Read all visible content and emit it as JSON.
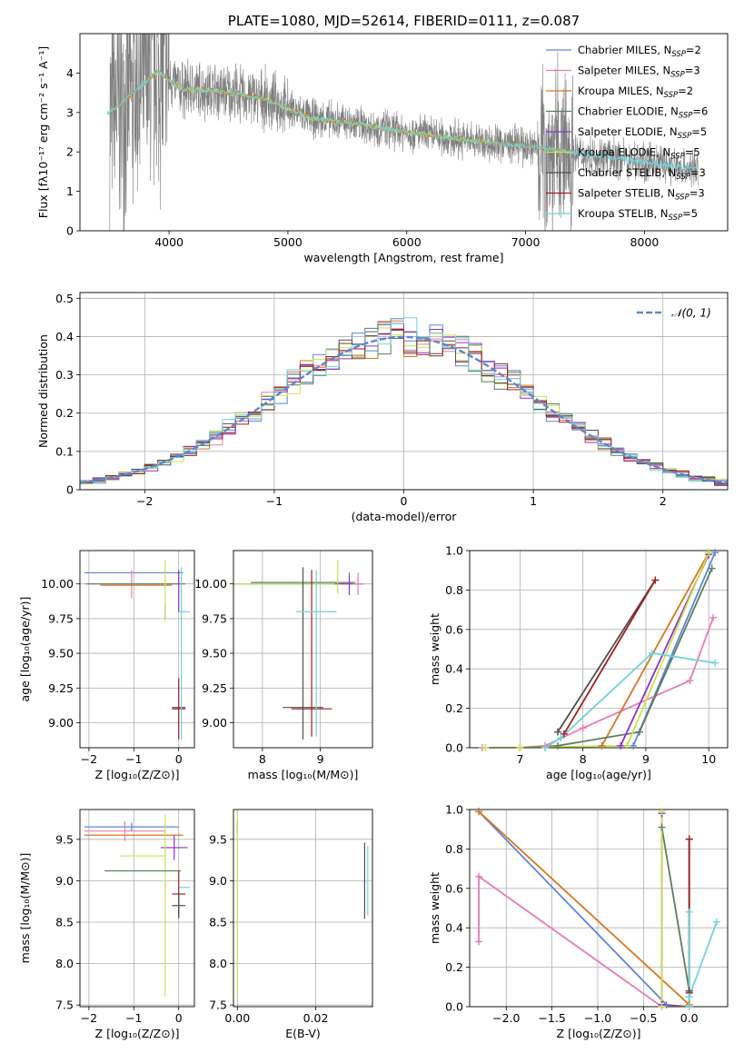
{
  "colors": {
    "Chabrier MILES": "#5b86d4",
    "Salpeter MILES": "#e87bb8",
    "Kroupa MILES": "#d9761f",
    "Chabrier ELODIE": "#5a7f5e",
    "Salpeter ELODIE": "#8f2fd3",
    "Kroupa ELODIE": "#c8e34e",
    "Chabrier STELIB": "#505050",
    "Salpeter STELIB": "#a11f1f",
    "Kroupa STELIB": "#6fd3dc",
    "data": "#7f7f7f",
    "grid": "#b0b0b0"
  },
  "chart_data": [
    {
      "id": "spectrum",
      "type": "line",
      "title": "PLATE=1080, MJD=52614, FIBERID=0111, z=0.087",
      "xlabel": "wavelength [Angstrom, rest frame]",
      "ylabel": "Flux [fλ10⁻¹⁷ erg cm⁻² s⁻¹ A⁻¹]",
      "xlim": [
        3250,
        8700
      ],
      "ylim": [
        0,
        5
      ],
      "xticks": [
        4000,
        5000,
        6000,
        7000,
        8000
      ],
      "yticks": [
        0,
        1,
        2,
        3,
        4
      ],
      "grid": false,
      "legend_position": "top-right",
      "legend": [
        {
          "series": "Chabrier MILES",
          "label": "Chabrier MILES, N",
          "sub": "SSP",
          "suffix": "=2"
        },
        {
          "series": "Salpeter MILES",
          "label": "Salpeter MILES, N",
          "sub": "SSP",
          "suffix": "=3"
        },
        {
          "series": "Kroupa MILES",
          "label": "Kroupa MILES, N",
          "sub": "SSP",
          "suffix": "=2"
        },
        {
          "series": "Chabrier ELODIE",
          "label": "Chabrier ELODIE, N",
          "sub": "SSP",
          "suffix": "=6"
        },
        {
          "series": "Salpeter ELODIE",
          "label": "Salpeter ELODIE, N",
          "sub": "SSP",
          "suffix": "=5"
        },
        {
          "series": "Kroupa ELODIE",
          "label": "Kroupa ELODIE, N",
          "sub": "SSP",
          "suffix": "=5"
        },
        {
          "series": "Chabrier STELIB",
          "label": "Chabrier STELIB, N",
          "sub": "SSP",
          "suffix": "=3"
        },
        {
          "series": "Salpeter STELIB",
          "label": "Salpeter STELIB, N",
          "sub": "SSP",
          "suffix": "=3"
        },
        {
          "series": "Kroupa STELIB",
          "label": "Kroupa STELIB, N",
          "sub": "SSP",
          "suffix": "=5"
        }
      ],
      "data_continuum": {
        "x": [
          3500,
          3700,
          3900,
          4100,
          4400,
          4800,
          5200,
          5600,
          6000,
          6500,
          7000,
          7500,
          8000,
          8450
        ],
        "y": [
          3.0,
          3.5,
          4.05,
          3.6,
          3.55,
          3.35,
          2.85,
          2.7,
          2.5,
          2.3,
          2.15,
          1.95,
          1.75,
          1.55
        ]
      },
      "model_segments": [
        {
          "series": "Kroupa ELODIE",
          "x": [
            3850,
            6800
          ]
        },
        {
          "series": "Kroupa MILES",
          "x": [
            3500,
            7400
          ]
        },
        {
          "series": "Kroupa STELIB",
          "x": [
            3480,
            8450
          ]
        }
      ]
    },
    {
      "id": "residuals",
      "type": "step-histogram",
      "xlabel": "(data-model)/error",
      "ylabel": "Normed distribution",
      "xlim": [
        -2.5,
        2.5
      ],
      "ylim": [
        0,
        0.515
      ],
      "xticks": [
        -2,
        -1,
        0,
        1,
        2
      ],
      "yticks": [
        0.0,
        0.1,
        0.2,
        0.3,
        0.4,
        0.5
      ],
      "grid": true,
      "legend_position": "top-right",
      "reference_curve": {
        "label": "𝒩(0, 1)",
        "distribution": "normal",
        "mean": 0,
        "sigma": 1
      },
      "bin_width": 0.1
    },
    {
      "id": "age-vs-Z",
      "type": "errorbar",
      "xlabel": "Z [log₁₀(Z/Z⊙)]",
      "ylabel": "age  [log₁₀(age/yr)]",
      "xlim": [
        -2.2,
        0.35
      ],
      "ylim": [
        8.82,
        10.24
      ],
      "xticks": [
        -2,
        -1,
        0
      ],
      "yticks": [
        9.0,
        9.25,
        9.5,
        9.75,
        10.0
      ],
      "ytick_labels": [
        "9.00",
        "9.25",
        "9.50",
        "9.75",
        "10.00"
      ],
      "grid": true,
      "points": [
        {
          "series": "Chabrier MILES",
          "x": -1.0,
          "xerr": 1.1,
          "y": 10.08,
          "yerr": 0.0
        },
        {
          "series": "Salpeter MILES",
          "x": -1.05,
          "xerr": 1.05,
          "y": 10.0,
          "yerr": 0.1
        },
        {
          "series": "Kroupa MILES",
          "x": -0.95,
          "xerr": 0.8,
          "y": 9.99,
          "yerr": 0.0
        },
        {
          "series": "Chabrier ELODIE",
          "x": -0.95,
          "xerr": 1.1,
          "y": 10.0,
          "yerr": 0.0
        },
        {
          "series": "Salpeter ELODIE",
          "x": -0.3,
          "xerr": 0.0,
          "y": 9.8,
          "yerr": 0.05
        },
        {
          "series": "Kroupa ELODIE",
          "x": -0.3,
          "xerr": 0.0,
          "y": 9.95,
          "yerr": 0.22
        },
        {
          "series": "Chabrier STELIB",
          "x": 0.0,
          "xerr": 0.15,
          "y": 9.11,
          "yerr": 0.0
        },
        {
          "series": "Salpeter STELIB",
          "x": 0.0,
          "xerr": 0.15,
          "y": 9.1,
          "yerr": 0.22
        },
        {
          "series": "Kroupa STELIB",
          "x": 0.13,
          "xerr": 0.12,
          "y": 9.8,
          "yerr": 0.0
        },
        {
          "series": "Kroupa STELIB",
          "x": 0.06,
          "xerr": 0.0,
          "y": 9.5,
          "yerr": 0.62
        },
        {
          "series": "Salpeter ELODIE",
          "x": 0.0,
          "xerr": 0.0,
          "y": 9.95,
          "yerr": 0.15
        }
      ]
    },
    {
      "id": "age-vs-mass",
      "type": "errorbar",
      "xlabel": "mass [log₁₀(M/M⊙)]",
      "ylabel": "",
      "xlim": [
        7.5,
        9.9
      ],
      "ylim": [
        8.82,
        10.24
      ],
      "xticks": [
        8,
        9
      ],
      "yticks": [
        9.0,
        9.25,
        9.5,
        9.75,
        10.0
      ],
      "ytick_labels": [
        "9.00",
        "9.25",
        "9.50",
        "9.75",
        "10.00"
      ],
      "grid": true,
      "points": [
        {
          "series": "Chabrier MILES",
          "x": 8.5,
          "xerr": 1.1,
          "y": 10.0,
          "yerr": 0.0
        },
        {
          "series": "Kroupa ELODIE",
          "x": 8.5,
          "xerr": 1.1,
          "y": 10.0,
          "yerr": 0.0
        },
        {
          "series": "Chabrier ELODIE",
          "x": 8.7,
          "xerr": 0.9,
          "y": 10.01,
          "yerr": 0.0
        },
        {
          "series": "Salpeter ELODIE",
          "x": 9.5,
          "xerr": 0.25,
          "y": 10.0,
          "yerr": 0.08
        },
        {
          "series": "Salpeter MILES",
          "x": 9.65,
          "xerr": 0.1,
          "y": 10.0,
          "yerr": 0.08
        },
        {
          "series": "Chabrier STELIB",
          "x": 8.7,
          "xerr": 0.35,
          "y": 9.11,
          "yerr": 0.0
        },
        {
          "series": "Chabrier STELIB",
          "x": 8.7,
          "xerr": 0.0,
          "y": 9.5,
          "yerr": 0.62
        },
        {
          "series": "Salpeter STELIB",
          "x": 8.85,
          "xerr": 0.35,
          "y": 9.1,
          "yerr": 0.0
        },
        {
          "series": "Salpeter STELIB",
          "x": 8.85,
          "xerr": 0.0,
          "y": 9.5,
          "yerr": 0.6
        },
        {
          "series": "Kroupa STELIB",
          "x": 8.93,
          "xerr": 0.35,
          "y": 9.8,
          "yerr": 0.0
        },
        {
          "series": "Kroupa STELIB",
          "x": 8.93,
          "xerr": 0.0,
          "y": 9.5,
          "yerr": 0.6
        },
        {
          "series": "Kroupa ELODIE",
          "x": 9.3,
          "xerr": 0.0,
          "y": 10.05,
          "yerr": 0.12
        }
      ]
    },
    {
      "id": "weight-vs-age",
      "type": "line",
      "xlabel": "age  [log₁₀(age/yr)]",
      "ylabel": "mass weight",
      "xlim": [
        6.2,
        10.3
      ],
      "ylim": [
        0,
        1
      ],
      "xticks": [
        7,
        8,
        9,
        10
      ],
      "yticks": [
        0.0,
        0.2,
        0.4,
        0.6,
        0.8,
        1.0
      ],
      "ytick_labels": [
        "0.0",
        "0.2",
        "0.4",
        "0.6",
        "0.8",
        "1.0"
      ],
      "grid": true,
      "series": [
        {
          "name": "Chabrier MILES",
          "x": [
            8.8,
            10.1
          ],
          "y": [
            0.01,
            0.99
          ]
        },
        {
          "name": "Salpeter MILES",
          "x": [
            6.4,
            7.0,
            7.4,
            8.0,
            9.7,
            10.07
          ],
          "y": [
            0.0,
            0.0,
            0.01,
            0.1,
            0.34,
            0.66
          ]
        },
        {
          "name": "Kroupa MILES",
          "x": [
            8.3,
            10.0
          ],
          "y": [
            0.01,
            0.99
          ]
        },
        {
          "name": "Chabrier ELODIE",
          "x": [
            7.0,
            7.6,
            8.9,
            10.05
          ],
          "y": [
            0.0,
            0.01,
            0.08,
            0.91
          ]
        },
        {
          "name": "Salpeter ELODIE",
          "x": [
            8.6,
            10.0
          ],
          "y": [
            0.01,
            0.98
          ]
        },
        {
          "name": "Kroupa ELODIE",
          "x": [
            6.45,
            7.0,
            8.7,
            10.0
          ],
          "y": [
            0.0,
            0.0,
            0.01,
            0.99
          ]
        },
        {
          "name": "Chabrier STELIB",
          "x": [
            7.6,
            9.15
          ],
          "y": [
            0.08,
            0.85
          ]
        },
        {
          "name": "Salpeter STELIB",
          "x": [
            7.7,
            9.15
          ],
          "y": [
            0.07,
            0.85
          ]
        },
        {
          "name": "Kroupa STELIB",
          "x": [
            7.4,
            7.65,
            9.1,
            10.1
          ],
          "y": [
            0.0,
            0.05,
            0.48,
            0.43
          ]
        }
      ]
    },
    {
      "id": "mass-vs-Z",
      "type": "errorbar",
      "xlabel": "Z [log₁₀(Z/Z⊙)]",
      "ylabel": "mass [log₁₀(M/M⊙)]",
      "xlim": [
        -2.2,
        0.35
      ],
      "ylim": [
        7.48,
        9.86
      ],
      "xticks": [
        -2,
        -1,
        0
      ],
      "yticks": [
        7.5,
        8.0,
        8.5,
        9.0,
        9.5
      ],
      "ytick_labels": [
        "7.5",
        "8.0",
        "8.5",
        "9.0",
        "9.5"
      ],
      "grid": true,
      "points": [
        {
          "series": "Chabrier MILES",
          "x": -1.05,
          "xerr": 1.05,
          "y": 9.65,
          "yerr": 0.05
        },
        {
          "series": "Kroupa MILES",
          "x": -1.0,
          "xerr": 1.1,
          "y": 9.55,
          "yerr": 0.0
        },
        {
          "series": "Salpeter MILES",
          "x": -1.2,
          "xerr": 0.9,
          "y": 9.6,
          "yerr": 0.12
        },
        {
          "series": "Salpeter ELODIE",
          "x": -0.1,
          "xerr": 0.3,
          "y": 9.4,
          "yerr": 0.15
        },
        {
          "series": "Kroupa ELODIE",
          "x": -0.8,
          "xerr": 0.5,
          "y": 9.3,
          "yerr": 0.0
        },
        {
          "series": "Kroupa ELODIE",
          "x": -0.3,
          "xerr": 0.0,
          "y": 8.7,
          "yerr": 1.1
        },
        {
          "series": "Chabrier ELODIE",
          "x": -0.8,
          "xerr": 0.85,
          "y": 9.12,
          "yerr": 0.0
        },
        {
          "series": "Kroupa STELIB",
          "x": 0.13,
          "xerr": 0.12,
          "y": 8.92,
          "yerr": 0.0
        },
        {
          "series": "Salpeter STELIB",
          "x": 0.0,
          "xerr": 0.15,
          "y": 8.84,
          "yerr": 0.28
        },
        {
          "series": "Chabrier STELIB",
          "x": 0.0,
          "xerr": 0.15,
          "y": 8.7,
          "yerr": 0.15
        }
      ]
    },
    {
      "id": "mass-vs-ebv",
      "type": "errorbar",
      "xlabel": "E(B-V)",
      "ylabel": "",
      "xlim": [
        -0.001,
        0.0345
      ],
      "ylim": [
        7.48,
        9.86
      ],
      "xticks": [
        0.0,
        0.02
      ],
      "xtick_labels": [
        "0.00",
        "0.02"
      ],
      "yticks": [
        7.5,
        8.0,
        8.5,
        9.0,
        9.5
      ],
      "ytick_labels": [
        "7.5",
        "8.0",
        "8.5",
        "9.0",
        "9.5"
      ],
      "grid": true,
      "points": [
        {
          "series": "Salpeter ELODIE",
          "x": 0.0,
          "xerr": 0.0,
          "y": 9.65,
          "yerr": 0.08
        },
        {
          "series": "Kroupa ELODIE",
          "x": 0.0,
          "xerr": 0.0,
          "y": 8.7,
          "yerr": 1.12
        },
        {
          "series": "Chabrier STELIB",
          "x": 0.0325,
          "xerr": 0.0,
          "y": 9.0,
          "yerr": 0.46
        },
        {
          "series": "Kroupa STELIB",
          "x": 0.0333,
          "xerr": 0.0,
          "y": 9.0,
          "yerr": 0.42
        }
      ]
    },
    {
      "id": "weight-vs-Z",
      "type": "line",
      "xlabel": "Z [log₁₀(Z/Z⊙)]",
      "ylabel": "mass weight",
      "xlim": [
        -2.4,
        0.42
      ],
      "ylim": [
        0,
        1
      ],
      "xticks": [
        -2.0,
        -1.5,
        -1.0,
        -0.5,
        0.0
      ],
      "xtick_labels": [
        "−2.0",
        "−1.5",
        "−1.0",
        "−0.5",
        "0.0"
      ],
      "yticks": [
        0.0,
        0.2,
        0.4,
        0.6,
        0.8,
        1.0
      ],
      "ytick_labels": [
        "0.0",
        "0.2",
        "0.4",
        "0.6",
        "0.8",
        "1.0"
      ],
      "grid": true,
      "series": [
        {
          "name": "Chabrier MILES",
          "x": [
            -2.3,
            -0.25
          ],
          "y": [
            0.99,
            0.01
          ]
        },
        {
          "name": "Salpeter MILES",
          "x": [
            -2.3,
            -2.3,
            -0.3
          ],
          "y": [
            0.33,
            0.66,
            0.0
          ]
        },
        {
          "name": "Kroupa MILES",
          "x": [
            -2.3,
            0.0
          ],
          "y": [
            0.99,
            0.01
          ]
        },
        {
          "name": "Chabrier ELODIE",
          "x": [
            -0.3,
            0.0,
            0.0
          ],
          "y": [
            0.91,
            0.08,
            0.0
          ]
        },
        {
          "name": "Salpeter ELODIE",
          "x": [
            -0.3,
            -0.3,
            0.0
          ],
          "y": [
            0.98,
            0.01,
            0.0
          ]
        },
        {
          "name": "Kroupa ELODIE",
          "x": [
            -0.3,
            -0.3,
            0.0
          ],
          "y": [
            0.99,
            0.0,
            0.0
          ]
        },
        {
          "name": "Chabrier STELIB",
          "x": [
            0.0,
            0.0
          ],
          "y": [
            0.85,
            0.08
          ]
        },
        {
          "name": "Salpeter STELIB",
          "x": [
            0.0,
            0.0
          ],
          "y": [
            0.85,
            0.07
          ]
        },
        {
          "name": "Kroupa STELIB",
          "x": [
            0.0,
            0.0,
            0.0,
            0.3
          ],
          "y": [
            0.48,
            0.0,
            0.05,
            0.43
          ]
        }
      ]
    }
  ]
}
